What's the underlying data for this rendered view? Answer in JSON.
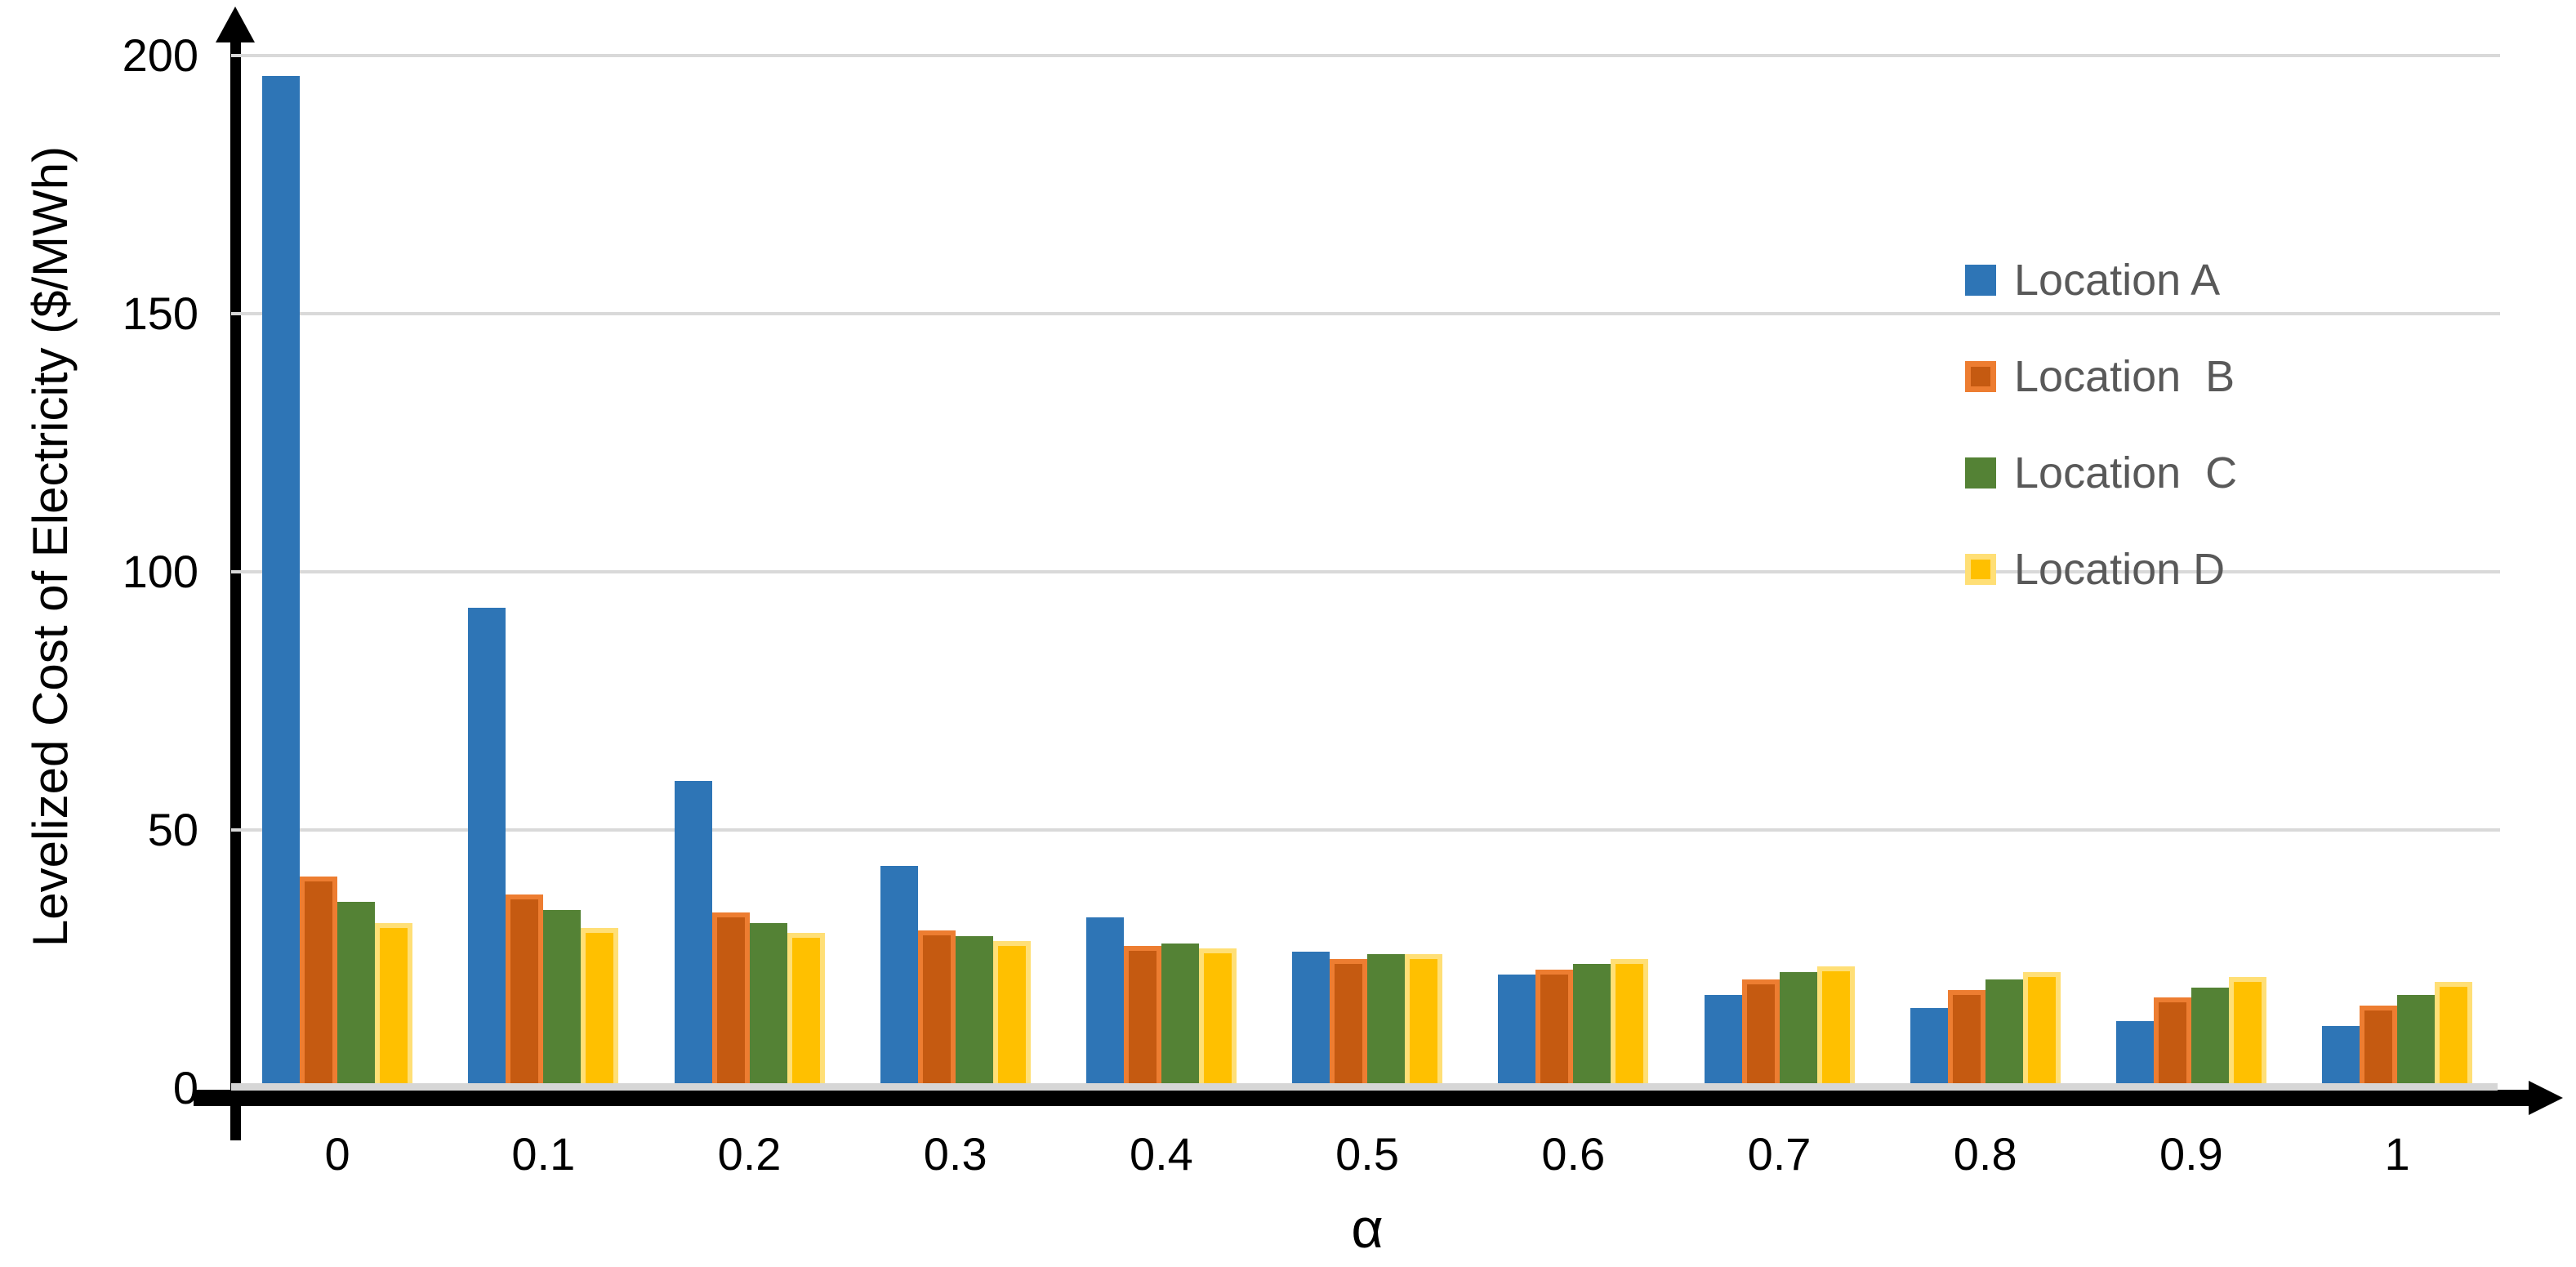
{
  "chart_data": {
    "type": "bar",
    "title": "",
    "xlabel": "α",
    "ylabel": "Levelized Cost of Electricity ($/MWh)",
    "categories": [
      "0",
      "0.1",
      "0.2",
      "0.3",
      "0.4",
      "0.5",
      "0.6",
      "0.7",
      "0.8",
      "0.9",
      "1"
    ],
    "series": [
      {
        "name": "Location A",
        "color": "#2E75B6",
        "border_color": null,
        "values": [
          196,
          93,
          59.5,
          43,
          33,
          26.5,
          22,
          18,
          15.5,
          13,
          12
        ]
      },
      {
        "name": "Location  B",
        "color": "#C55A11",
        "border_color": "#ED7D31",
        "values": [
          41,
          37.5,
          34,
          30.5,
          27.5,
          25,
          23,
          21,
          19,
          17.5,
          16
        ]
      },
      {
        "name": "Location  C",
        "color": "#548235",
        "border_color": null,
        "values": [
          36,
          34.5,
          32,
          29.5,
          28,
          26,
          24,
          22.5,
          21,
          19.5,
          18
        ]
      },
      {
        "name": "Location D",
        "color": "#FFC000",
        "border_color": "#FFDF76",
        "values": [
          32,
          31,
          30,
          28.5,
          27,
          26,
          25,
          23.5,
          22.5,
          21.5,
          20.5
        ]
      }
    ],
    "yticks": [
      0,
      50,
      100,
      150,
      200
    ],
    "ylim": [
      0,
      200
    ],
    "grid": true,
    "gridline_color": "#D9D9D9",
    "zero_line_color": "#D6D6D6",
    "axis_color": "#000000",
    "tick_label_color": "#000000",
    "legend_text_color": "#595959",
    "legend_position": "upper-right"
  }
}
